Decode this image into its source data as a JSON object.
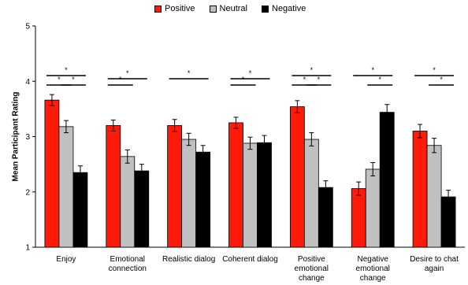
{
  "chart_data": {
    "type": "bar",
    "ylabel": "Mean Participant Rating",
    "ylim": [
      1,
      5
    ],
    "yticks": [
      1,
      2,
      3,
      4,
      5
    ],
    "legend_position": "top",
    "categories": [
      [
        "Enjoy"
      ],
      [
        "Emotional",
        "connection"
      ],
      [
        "Realistic dialog"
      ],
      [
        "Coherent dialog"
      ],
      [
        "Positive",
        "emotional",
        "change"
      ],
      [
        "Negative",
        "emotional",
        "change"
      ],
      [
        "Desire to chat",
        "again"
      ]
    ],
    "series": [
      {
        "name": "Positive",
        "color": "#ff1a0a",
        "values": [
          3.66,
          3.2,
          3.2,
          3.25,
          3.54,
          2.06,
          3.1
        ],
        "errors": [
          0.1,
          0.1,
          0.11,
          0.1,
          0.11,
          0.12,
          0.12
        ]
      },
      {
        "name": "Neutral",
        "color": "#c0c0c0",
        "values": [
          3.18,
          2.64,
          2.95,
          2.88,
          2.95,
          2.41,
          2.84
        ],
        "errors": [
          0.11,
          0.12,
          0.11,
          0.11,
          0.12,
          0.12,
          0.13
        ]
      },
      {
        "name": "Negative",
        "color": "#000000",
        "values": [
          2.35,
          2.38,
          2.72,
          2.89,
          2.08,
          3.44,
          1.91
        ],
        "errors": [
          0.12,
          0.12,
          0.12,
          0.13,
          0.12,
          0.14,
          0.12
        ]
      }
    ],
    "significance": [
      {
        "category": 0,
        "from": 0,
        "to": 2,
        "level": 3,
        "label": "*"
      },
      {
        "category": 0,
        "from": 0,
        "to": 1,
        "level": 1,
        "label": "*"
      },
      {
        "category": 0,
        "from": 1,
        "to": 2,
        "level": 1,
        "label": "*"
      },
      {
        "category": 1,
        "from": 0,
        "to": 2,
        "level": 2,
        "label": "*"
      },
      {
        "category": 1,
        "from": 0,
        "to": 1,
        "level": 1,
        "label": "*"
      },
      {
        "category": 2,
        "from": 0,
        "to": 2,
        "level": 2,
        "label": "*"
      },
      {
        "category": 3,
        "from": 0,
        "to": 2,
        "level": 2,
        "label": "*"
      },
      {
        "category": 3,
        "from": 0,
        "to": 1,
        "level": 1,
        "label": "*"
      },
      {
        "category": 4,
        "from": 0,
        "to": 2,
        "level": 3,
        "label": "*"
      },
      {
        "category": 4,
        "from": 0,
        "to": 1,
        "level": 1,
        "label": "*"
      },
      {
        "category": 4,
        "from": 1,
        "to": 2,
        "level": 1,
        "label": "*"
      },
      {
        "category": 5,
        "from": 0,
        "to": 2,
        "level": 3,
        "label": "*"
      },
      {
        "category": 5,
        "from": 1,
        "to": 2,
        "level": 1,
        "label": "*"
      },
      {
        "category": 6,
        "from": 0,
        "to": 2,
        "level": 3,
        "label": "*"
      },
      {
        "category": 6,
        "from": 1,
        "to": 2,
        "level": 1,
        "label": "*"
      }
    ]
  }
}
